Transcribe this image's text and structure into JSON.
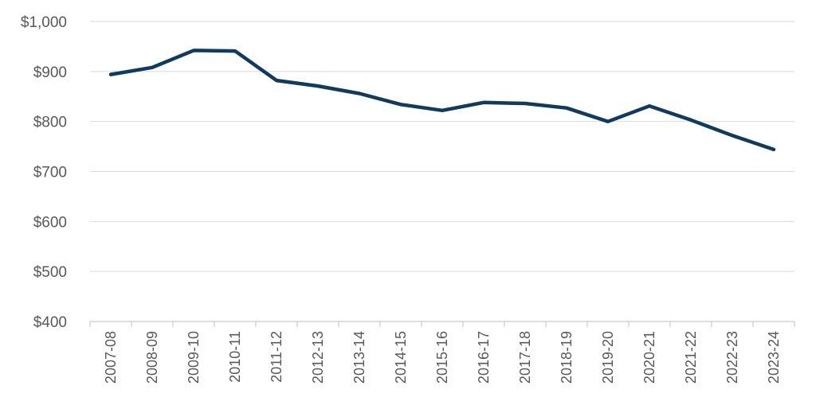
{
  "chart_data": {
    "type": "line",
    "title": "",
    "xlabel": "",
    "ylabel": "",
    "categories": [
      "2007-08",
      "2008-09",
      "2009-10",
      "2010-11",
      "2011-12",
      "2012-13",
      "2013-14",
      "2014-15",
      "2015-16",
      "2016-17",
      "2017-18",
      "2018-19",
      "2019-20",
      "2020-21",
      "2021-22",
      "2022-23",
      "2023-24"
    ],
    "series": [
      {
        "values": [
          894,
          908,
          942,
          941,
          882,
          871,
          856,
          834,
          822,
          838,
          836,
          827,
          800,
          831,
          803,
          772,
          744
        ],
        "color": "#0f3b5f"
      }
    ],
    "ylim": [
      400,
      1000
    ],
    "yticks": [
      400,
      500,
      600,
      700,
      800,
      900,
      1000
    ],
    "ytick_labels": [
      "$400",
      "$500",
      "$600",
      "$700",
      "$800",
      "$900",
      "$1,000"
    ],
    "grid": true,
    "legend": "none"
  }
}
